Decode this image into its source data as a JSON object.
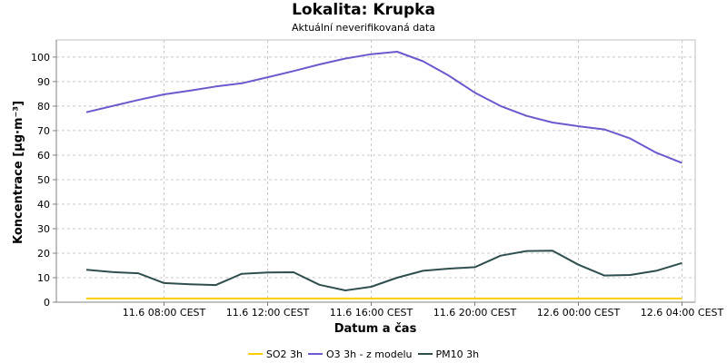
{
  "chart_data": {
    "type": "line",
    "title": "Lokalita: Krupka",
    "subtitle": "Aktuální neverifikovaná data",
    "xlabel": "Datum a čas",
    "ylabel": "Koncentrace [µg·m⁻³]",
    "ylim": [
      0,
      107
    ],
    "yticks": [
      0,
      10,
      20,
      30,
      40,
      50,
      60,
      70,
      80,
      90,
      100
    ],
    "grid": true,
    "legend_position": "bottom",
    "x": [
      "11.6 05:00",
      "11.6 06:00",
      "11.6 07:00",
      "11.6 08:00",
      "11.6 09:00",
      "11.6 10:00",
      "11.6 11:00",
      "11.6 12:00",
      "11.6 13:00",
      "11.6 14:00",
      "11.6 15:00",
      "11.6 16:00",
      "11.6 17:00",
      "11.6 18:00",
      "11.6 19:00",
      "11.6 20:00",
      "11.6 21:00",
      "11.6 22:00",
      "11.6 23:00",
      "12.6 00:00",
      "12.6 01:00",
      "12.6 02:00",
      "12.6 03:00",
      "12.6 04:00"
    ],
    "xticks": [
      {
        "index": 3,
        "label": "11.6 08:00 CEST"
      },
      {
        "index": 7,
        "label": "11.6 12:00 CEST"
      },
      {
        "index": 11,
        "label": "11.6 16:00 CEST"
      },
      {
        "index": 15,
        "label": "11.6 20:00 CEST"
      },
      {
        "index": 19,
        "label": "12.6 00:00 CEST"
      },
      {
        "index": 23,
        "label": "12.6 04:00 CEST"
      }
    ],
    "series": [
      {
        "name": "SO2 3h",
        "color": "#FFCC00",
        "values": [
          1.5,
          1.5,
          1.5,
          1.5,
          1.5,
          1.5,
          1.5,
          1.5,
          1.5,
          1.5,
          1.5,
          1.5,
          1.5,
          1.5,
          1.5,
          1.5,
          1.5,
          1.5,
          1.5,
          1.5,
          1.5,
          1.5,
          1.5,
          1.5
        ]
      },
      {
        "name": "O3 3h - z modelu",
        "color": "#6A5ACD",
        "values": [
          77.5,
          80.0,
          82.5,
          84.8,
          86.3,
          88.0,
          89.3,
          91.8,
          94.3,
          97.0,
          99.4,
          101.2,
          102.2,
          98.3,
          92.4,
          85.5,
          80.0,
          76.0,
          73.3,
          71.8,
          70.5,
          66.8,
          61.0,
          56.8
        ]
      },
      {
        "name": "PM10 3h",
        "color": "#2F4F4F",
        "values": [
          13.2,
          12.3,
          11.8,
          7.8,
          7.3,
          7.0,
          11.6,
          12.1,
          12.2,
          7.1,
          4.8,
          6.3,
          10.0,
          12.8,
          13.7,
          14.3,
          19.0,
          20.9,
          21.0,
          15.3,
          10.9,
          11.1,
          12.8,
          16.0
        ]
      }
    ]
  }
}
